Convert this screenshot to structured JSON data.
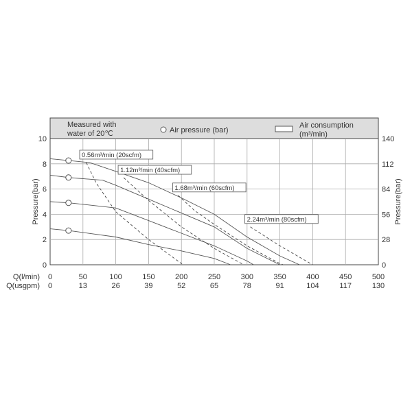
{
  "chart_data": {
    "type": "line",
    "header": {
      "note_line1": "Measured with",
      "note_line2": "water of 20℃",
      "legend_circle": "Air pressure (bar)",
      "legend_box_line1": "Air consumption",
      "legend_box_line2": "(m³/min)"
    },
    "ylabel_left": "Pressure(bar)",
    "ylabel_right": "Pressure(bar)",
    "xlim": [
      0,
      500
    ],
    "ylim": [
      0,
      10
    ],
    "x_ticks": [
      "0",
      "50",
      "100",
      "150",
      "200",
      "250",
      "300",
      "350",
      "400",
      "450",
      "500"
    ],
    "x_ticks_usgpm": [
      "0",
      "13",
      "26",
      "39",
      "52",
      "65",
      "78",
      "91",
      "104",
      "117",
      "130"
    ],
    "x_label_lmin": "Q(l/min)",
    "x_label_usgpm": "Q(usgpm)",
    "y_ticks_left": [
      "0",
      "2",
      "4",
      "6",
      "8",
      "10"
    ],
    "y_ticks_right": [
      "0",
      "28",
      "56",
      "84",
      "112",
      "140"
    ],
    "grid": true,
    "pressure_curves": [
      {
        "points": [
          [
            0,
            8.4
          ],
          [
            30,
            8.25
          ],
          [
            60,
            8.1
          ],
          [
            100,
            7.4
          ],
          [
            150,
            6.5
          ],
          [
            200,
            5.3
          ],
          [
            250,
            4.0
          ],
          [
            300,
            2.2
          ],
          [
            350,
            0.7
          ],
          [
            380,
            0
          ]
        ]
      },
      {
        "points": [
          [
            0,
            7.1
          ],
          [
            30,
            6.9
          ],
          [
            80,
            6.7
          ],
          [
            100,
            6.3
          ],
          [
            150,
            5.2
          ],
          [
            200,
            4.1
          ],
          [
            250,
            3.0
          ],
          [
            300,
            1.3
          ],
          [
            350,
            0
          ]
        ]
      },
      {
        "points": [
          [
            0,
            5.0
          ],
          [
            30,
            4.9
          ],
          [
            100,
            4.5
          ],
          [
            150,
            3.5
          ],
          [
            200,
            2.5
          ],
          [
            250,
            1.5
          ],
          [
            300,
            0.3
          ],
          [
            310,
            0
          ]
        ]
      },
      {
        "points": [
          [
            0,
            2.85
          ],
          [
            30,
            2.7
          ],
          [
            100,
            2.2
          ],
          [
            150,
            1.6
          ],
          [
            200,
            1.1
          ],
          [
            250,
            0.5
          ],
          [
            275,
            0
          ]
        ]
      }
    ],
    "air_consumption_curves": [
      {
        "label": "0.56m³/min (20scfm)",
        "points": [
          [
            55,
            8.1
          ],
          [
            70,
            6.5
          ],
          [
            100,
            4.2
          ],
          [
            150,
            2.0
          ],
          [
            200,
            0.1
          ],
          [
            202,
            0
          ]
        ]
      },
      {
        "label": "1.12m³/min (40scfm)",
        "points": [
          [
            112,
            6.9
          ],
          [
            150,
            5.1
          ],
          [
            200,
            3.0
          ],
          [
            250,
            1.3
          ],
          [
            295,
            0
          ]
        ]
      },
      {
        "label": "1.68m³/min (60scfm)",
        "points": [
          [
            195,
            5.5
          ],
          [
            220,
            4.3
          ],
          [
            250,
            3.2
          ],
          [
            300,
            1.5
          ],
          [
            350,
            0.1
          ],
          [
            355,
            0
          ]
        ]
      },
      {
        "label": "2.24m³/min (80scfm)",
        "points": [
          [
            305,
            3.0
          ],
          [
            350,
            1.5
          ],
          [
            400,
            0
          ]
        ]
      }
    ],
    "air_pressure_markers_x": 28
  }
}
